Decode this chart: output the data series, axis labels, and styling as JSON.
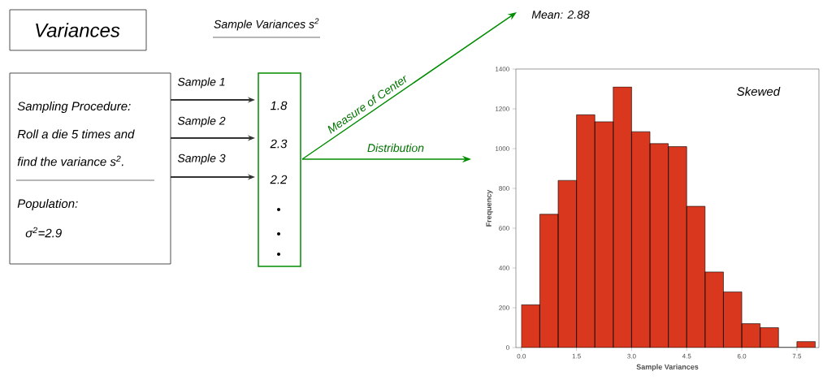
{
  "chart_data": {
    "type": "histogram",
    "xlabel": "Sample Variances",
    "ylabel": "Frequency",
    "bins": [
      0,
      0.5,
      1,
      1.5,
      2,
      2.5,
      3,
      3.5,
      4,
      4.5,
      5,
      5.5,
      6,
      6.5,
      7,
      7.5,
      8
    ],
    "values": [
      215,
      670,
      840,
      1170,
      1135,
      1310,
      1085,
      1025,
      1010,
      710,
      380,
      280,
      120,
      100,
      0,
      30
    ],
    "color": "#d9381e",
    "xlim": [
      -0.15,
      8.1
    ],
    "ylim": [
      0,
      1400
    ],
    "xticks": [
      {
        "value": 0,
        "label": "0.0"
      },
      1.5,
      {
        "value": 3,
        "label": "3.0"
      },
      4.5,
      {
        "value": 6,
        "label": "6.0"
      },
      7.5
    ],
    "yticks": [
      0,
      200,
      400,
      600,
      800,
      1000,
      1200,
      1400
    ],
    "annotations": [
      "Variances",
      "Sample Variances s$^{2}$",
      "Sampling Procedure:",
      "Roll a die 5 times and",
      "find the variance s$^{2}$.",
      "Population:",
      "σ$^{2}$=2.9",
      "Sample 1",
      "Sample 2",
      "Sample 3",
      "1.8",
      "2.3",
      "2.2",
      "Measure of Center",
      "Distribution",
      "Mean: 2.88",
      "Skewed"
    ]
  }
}
